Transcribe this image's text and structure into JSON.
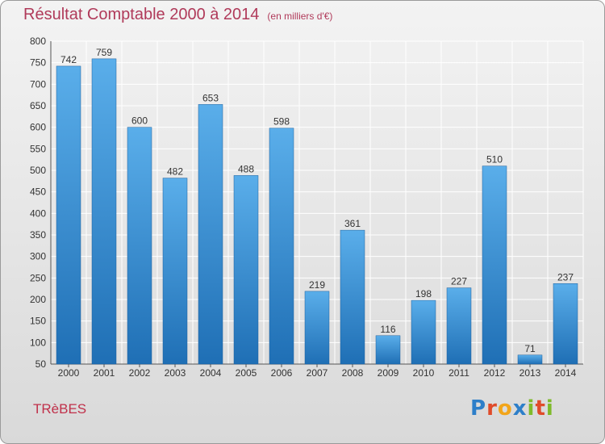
{
  "chart_data": {
    "type": "bar",
    "title": "Résultat Comptable 2000 à 2014",
    "subtitle": "(en milliers d'€)",
    "categories": [
      "2000",
      "2001",
      "2002",
      "2003",
      "2004",
      "2005",
      "2006",
      "2007",
      "2008",
      "2009",
      "2010",
      "2011",
      "2012",
      "2013",
      "2014"
    ],
    "values": [
      742,
      759,
      600,
      482,
      653,
      488,
      598,
      219,
      361,
      116,
      198,
      227,
      510,
      71,
      237
    ],
    "ylim": [
      50,
      800
    ],
    "yticks": [
      50,
      100,
      150,
      200,
      250,
      300,
      350,
      400,
      450,
      500,
      550,
      600,
      650,
      700,
      750,
      800
    ],
    "grid": true,
    "xlabel": "",
    "ylabel": "",
    "bar_color": "#3a8fd6",
    "grid_color": "#ffffff"
  },
  "footer": {
    "commune": "TRèBES"
  },
  "logo": {
    "letters": [
      "P",
      "r",
      "o",
      "x",
      "i",
      "t",
      "i"
    ],
    "colors": [
      "#2d7fc9",
      "#e04b2a",
      "#f2a51a",
      "#2d7fc9",
      "#7fba2a",
      "#e04b2a",
      "#7fba2a"
    ]
  }
}
